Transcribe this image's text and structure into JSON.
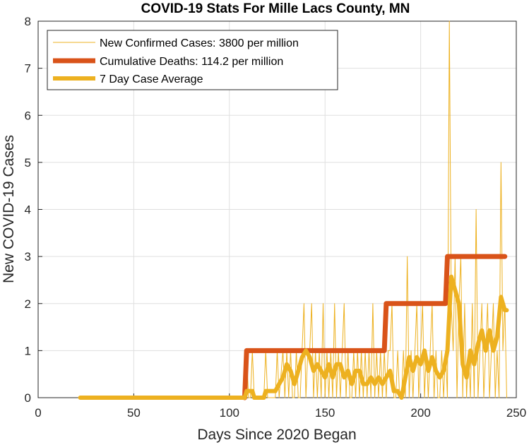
{
  "chart_data": {
    "type": "line",
    "title": "COVID-19 Stats For Mille Lacs County, MN",
    "xlabel": "Days Since 2020 Began",
    "ylabel": "New COVID-19 Cases",
    "xlim": [
      0,
      250
    ],
    "ylim": [
      0,
      8
    ],
    "x_ticks": [
      "0",
      "50",
      "100",
      "150",
      "200",
      "250"
    ],
    "y_ticks": [
      "0",
      "1",
      "2",
      "3",
      "4",
      "5",
      "6",
      "7",
      "8"
    ],
    "grid": true,
    "legend_position": "top-left",
    "series": [
      {
        "name": "New Confirmed Cases: 3800 per million",
        "color": "#EDB120",
        "style": "thin",
        "points": [
          [
            22,
            0
          ],
          [
            108,
            0
          ],
          [
            109,
            1
          ],
          [
            110,
            0
          ],
          [
            111,
            0
          ],
          [
            112,
            1
          ],
          [
            113,
            0
          ],
          [
            114,
            0
          ],
          [
            118,
            0
          ],
          [
            119,
            1
          ],
          [
            120,
            0
          ],
          [
            124,
            0
          ],
          [
            125,
            1
          ],
          [
            126,
            0
          ],
          [
            128,
            1
          ],
          [
            129,
            0
          ],
          [
            130,
            1
          ],
          [
            131,
            0
          ],
          [
            132,
            1
          ],
          [
            133,
            0
          ],
          [
            134,
            0
          ],
          [
            135,
            1
          ],
          [
            136,
            0
          ],
          [
            137,
            0
          ],
          [
            138,
            1
          ],
          [
            139,
            2
          ],
          [
            140,
            0
          ],
          [
            141,
            1
          ],
          [
            142,
            1
          ],
          [
            143,
            2
          ],
          [
            144,
            0
          ],
          [
            145,
            1
          ],
          [
            146,
            0
          ],
          [
            147,
            1
          ],
          [
            148,
            0
          ],
          [
            149,
            2
          ],
          [
            150,
            0
          ],
          [
            151,
            1
          ],
          [
            152,
            0
          ],
          [
            153,
            1
          ],
          [
            154,
            0
          ],
          [
            155,
            2
          ],
          [
            156,
            0
          ],
          [
            157,
            1
          ],
          [
            158,
            0
          ],
          [
            159,
            1
          ],
          [
            160,
            2
          ],
          [
            161,
            0
          ],
          [
            162,
            1
          ],
          [
            163,
            0
          ],
          [
            164,
            0
          ],
          [
            165,
            1
          ],
          [
            166,
            0
          ],
          [
            167,
            1
          ],
          [
            168,
            0
          ],
          [
            169,
            1
          ],
          [
            170,
            0
          ],
          [
            171,
            1
          ],
          [
            172,
            0
          ],
          [
            173,
            1
          ],
          [
            174,
            0
          ],
          [
            175,
            2
          ],
          [
            176,
            0
          ],
          [
            177,
            1
          ],
          [
            178,
            0
          ],
          [
            179,
            1
          ],
          [
            180,
            0
          ],
          [
            181,
            1
          ],
          [
            182,
            0
          ],
          [
            183,
            1
          ],
          [
            184,
            1
          ],
          [
            185,
            2
          ],
          [
            186,
            0
          ],
          [
            187,
            0
          ],
          [
            188,
            1
          ],
          [
            189,
            0
          ],
          [
            190,
            0
          ],
          [
            191,
            1
          ],
          [
            192,
            0
          ],
          [
            193,
            3
          ],
          [
            194,
            0
          ],
          [
            195,
            1
          ],
          [
            196,
            0
          ],
          [
            197,
            1
          ],
          [
            198,
            2
          ],
          [
            199,
            0
          ],
          [
            200,
            1
          ],
          [
            201,
            2
          ],
          [
            202,
            0
          ],
          [
            203,
            1
          ],
          [
            204,
            0
          ],
          [
            205,
            1
          ],
          [
            206,
            2
          ],
          [
            207,
            0
          ],
          [
            208,
            1
          ],
          [
            209,
            0
          ],
          [
            210,
            0
          ],
          [
            211,
            1
          ],
          [
            212,
            0
          ],
          [
            213,
            1
          ],
          [
            214,
            0
          ],
          [
            215,
            8
          ],
          [
            216,
            2
          ],
          [
            217,
            1
          ],
          [
            218,
            3
          ],
          [
            219,
            0
          ],
          [
            220,
            2
          ],
          [
            221,
            3
          ],
          [
            222,
            0
          ],
          [
            223,
            2
          ],
          [
            224,
            0
          ],
          [
            225,
            1
          ],
          [
            226,
            0
          ],
          [
            227,
            2
          ],
          [
            228,
            0
          ],
          [
            229,
            4
          ],
          [
            230,
            0
          ],
          [
            231,
            1
          ],
          [
            232,
            2
          ],
          [
            233,
            0
          ],
          [
            234,
            1
          ],
          [
            235,
            2
          ],
          [
            236,
            0
          ],
          [
            237,
            1
          ],
          [
            238,
            2
          ],
          [
            239,
            0
          ],
          [
            240,
            1
          ],
          [
            241,
            0
          ],
          [
            242,
            5
          ],
          [
            243,
            1
          ],
          [
            244,
            2
          ],
          [
            245,
            0
          ]
        ]
      },
      {
        "name": "Cumulative Deaths: 114.2 per million",
        "color": "#D95319",
        "style": "thick",
        "points": [
          [
            108,
            0
          ],
          [
            109,
            1
          ],
          [
            181,
            1
          ],
          [
            182,
            2
          ],
          [
            213,
            2
          ],
          [
            214,
            3
          ],
          [
            244,
            3
          ]
        ]
      },
      {
        "name": "7 Day Case Average",
        "color": "#EDB120",
        "style": "medium",
        "points": [
          [
            22,
            0
          ],
          [
            108,
            0
          ],
          [
            109,
            0.14
          ],
          [
            112,
            0.14
          ],
          [
            113,
            0
          ],
          [
            118,
            0
          ],
          [
            119,
            0.14
          ],
          [
            124,
            0.14
          ],
          [
            126,
            0.29
          ],
          [
            128,
            0.43
          ],
          [
            130,
            0.71
          ],
          [
            132,
            0.57
          ],
          [
            134,
            0.29
          ],
          [
            136,
            0.57
          ],
          [
            138,
            0.86
          ],
          [
            140,
            1
          ],
          [
            142,
            0.86
          ],
          [
            144,
            0.57
          ],
          [
            146,
            0.71
          ],
          [
            148,
            0.57
          ],
          [
            150,
            0.43
          ],
          [
            152,
            0.71
          ],
          [
            154,
            0.43
          ],
          [
            156,
            0.71
          ],
          [
            158,
            0.71
          ],
          [
            160,
            0.43
          ],
          [
            162,
            0.57
          ],
          [
            164,
            0.29
          ],
          [
            166,
            0.57
          ],
          [
            168,
            0.57
          ],
          [
            170,
            0.29
          ],
          [
            172,
            0.29
          ],
          [
            174,
            0.43
          ],
          [
            176,
            0.29
          ],
          [
            178,
            0.43
          ],
          [
            180,
            0.29
          ],
          [
            182,
            0.43
          ],
          [
            184,
            0.57
          ],
          [
            186,
            0.14
          ],
          [
            188,
            0.14
          ],
          [
            190,
            0
          ],
          [
            192,
            0.43
          ],
          [
            194,
            0.86
          ],
          [
            196,
            0.57
          ],
          [
            198,
            0.86
          ],
          [
            200,
            0.71
          ],
          [
            202,
            1
          ],
          [
            204,
            0.57
          ],
          [
            206,
            0.86
          ],
          [
            208,
            0.57
          ],
          [
            210,
            0.43
          ],
          [
            212,
            0.57
          ],
          [
            214,
            1
          ],
          [
            216,
            2.57
          ],
          [
            218,
            2.29
          ],
          [
            220,
            2
          ],
          [
            222,
            0.71
          ],
          [
            224,
            0.43
          ],
          [
            226,
            1
          ],
          [
            228,
            0.71
          ],
          [
            230,
            1.14
          ],
          [
            232,
            1.43
          ],
          [
            234,
            1
          ],
          [
            236,
            1.43
          ],
          [
            238,
            1
          ],
          [
            240,
            1.29
          ],
          [
            242,
            2.14
          ],
          [
            244,
            1.86
          ],
          [
            245,
            1.86
          ]
        ]
      }
    ]
  }
}
